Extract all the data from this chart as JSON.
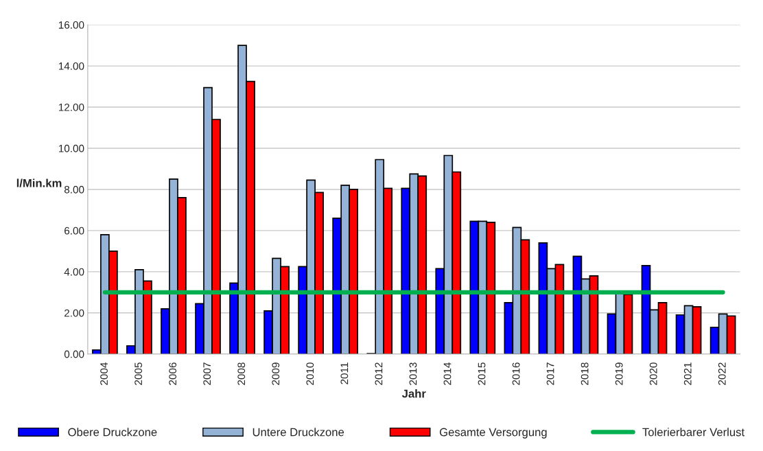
{
  "chart_data": {
    "type": "bar",
    "xlabel": "Jahr",
    "ylabel": "l/Min.km",
    "categories": [
      "2004",
      "2005",
      "2006",
      "2007",
      "2008",
      "2009",
      "2010",
      "2011",
      "2012",
      "2013",
      "2014",
      "2015",
      "2016",
      "2017",
      "2018",
      "2019",
      "2020",
      "2021",
      "2022"
    ],
    "series": [
      {
        "name": "Obere Druckzone",
        "color": "#0000ff",
        "values": [
          0.2,
          0.4,
          2.2,
          2.45,
          3.45,
          2.1,
          4.25,
          6.6,
          0.02,
          8.05,
          4.15,
          6.45,
          2.5,
          5.4,
          4.75,
          1.95,
          4.3,
          1.9,
          1.3
        ]
      },
      {
        "name": "Untere Druckzone",
        "color": "#95b3d7",
        "values": [
          5.8,
          4.1,
          8.5,
          12.95,
          15.0,
          4.65,
          8.45,
          8.2,
          9.45,
          8.75,
          9.65,
          6.45,
          6.15,
          4.15,
          3.65,
          2.95,
          2.15,
          2.35,
          1.95
        ]
      },
      {
        "name": "Gesamte Versorgung",
        "color": "#ff0000",
        "values": [
          5.0,
          3.55,
          7.6,
          11.4,
          13.25,
          4.25,
          7.85,
          8.0,
          8.05,
          8.65,
          8.85,
          6.4,
          5.55,
          4.35,
          3.8,
          2.9,
          2.5,
          2.3,
          1.85
        ]
      },
      {
        "name": "Tolerierbarer Verlust",
        "color": "#00b050",
        "type": "line",
        "values": [
          3,
          3,
          3,
          3,
          3,
          3,
          3,
          3,
          3,
          3,
          3,
          3,
          3,
          3,
          3,
          3,
          3,
          3,
          3
        ]
      }
    ],
    "ylim": [
      0,
      16
    ],
    "yticks": [
      {
        "value": 0,
        "label": "0.00"
      },
      {
        "value": 2,
        "label": "2.00"
      },
      {
        "value": 4,
        "label": "4.00"
      },
      {
        "value": 6,
        "label": "6.00"
      },
      {
        "value": 8,
        "label": "8.00"
      },
      {
        "value": 10,
        "label": "10.00"
      },
      {
        "value": 12,
        "label": "12.00"
      },
      {
        "value": 14,
        "label": "14.00"
      },
      {
        "value": 16,
        "label": "16.00"
      }
    ],
    "grid": "y",
    "legend": "bottom"
  }
}
